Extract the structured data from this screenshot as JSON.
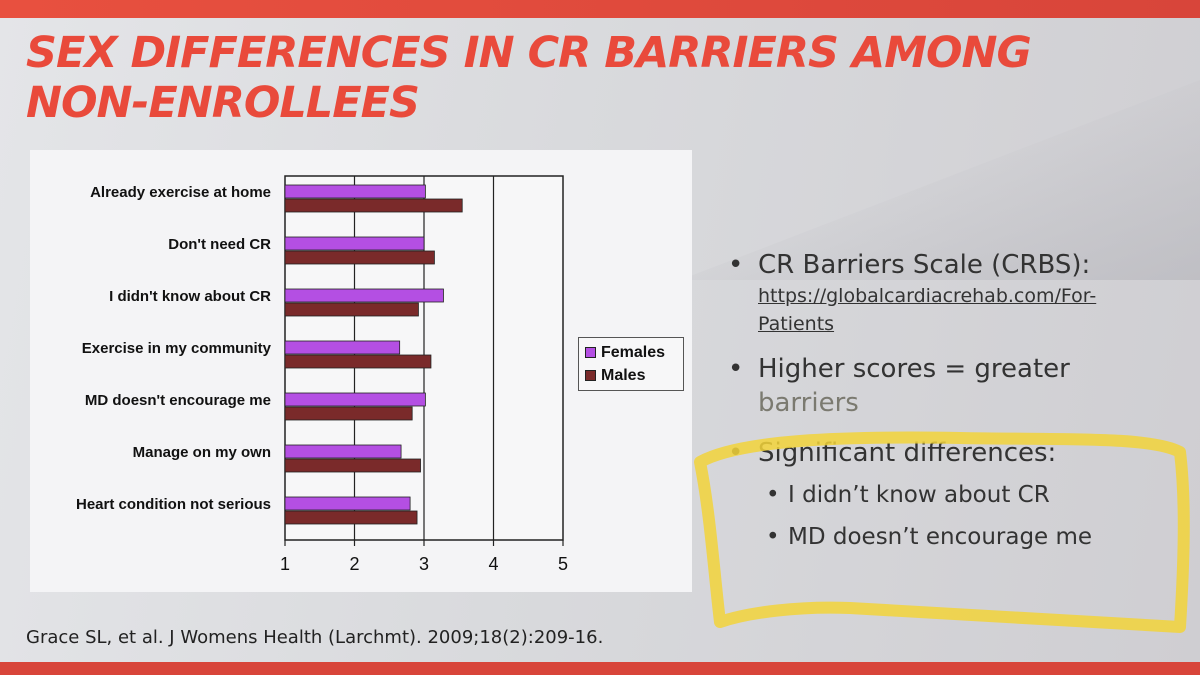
{
  "title": "SEX DIFFERENCES IN CR BARRIERS AMONG NON-ENROLLEES",
  "chart_data": {
    "type": "bar",
    "orientation": "horizontal",
    "categories": [
      "Already exercise at home",
      "Don't need CR",
      "I didn't know about CR",
      "Exercise in my community",
      "MD doesn't encourage me",
      "Manage on my own",
      "Heart condition not serious"
    ],
    "series": [
      {
        "name": "Females",
        "color": "#b44fe3",
        "values": [
          3.02,
          3.0,
          3.28,
          2.65,
          3.02,
          2.67,
          2.8
        ]
      },
      {
        "name": "Males",
        "color": "#7a2a2a",
        "values": [
          3.55,
          3.15,
          2.92,
          3.1,
          2.83,
          2.95,
          2.9
        ]
      }
    ],
    "xlim": [
      1,
      5
    ],
    "xticks": [
      "1",
      "2",
      "3",
      "4",
      "5"
    ],
    "grid": "vertical",
    "legend": "right"
  },
  "bullets": {
    "item1_text": "CR Barriers Scale (CRBS):",
    "item1_link": "https://globalcardiacrehab.com/For-Patients",
    "item2_text_a": "Higher scores = greater",
    "item2_text_b": "barriers",
    "item3_text": "Significant differences:",
    "sub_items": [
      "I didn’t know about CR",
      "MD doesn’t encourage me"
    ]
  },
  "citation": "Grace SL, et al. J Womens Health (Larchmt). 2009;18(2):209-16.",
  "colors": {
    "accent": "#e94a3b",
    "highlight": "#f2d33a"
  }
}
